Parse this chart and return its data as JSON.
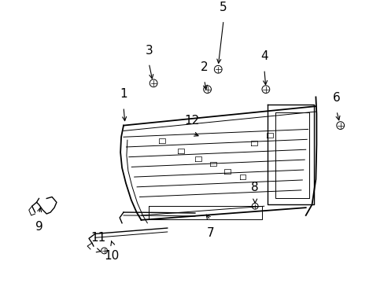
{
  "bg_color": "#ffffff",
  "line_color": "#000000",
  "figsize": [
    4.89,
    3.6
  ],
  "dpi": 100,
  "labels": [
    "1",
    "2",
    "3",
    "4",
    "5",
    "6",
    "7",
    "8",
    "9",
    "10",
    "11",
    "12"
  ]
}
